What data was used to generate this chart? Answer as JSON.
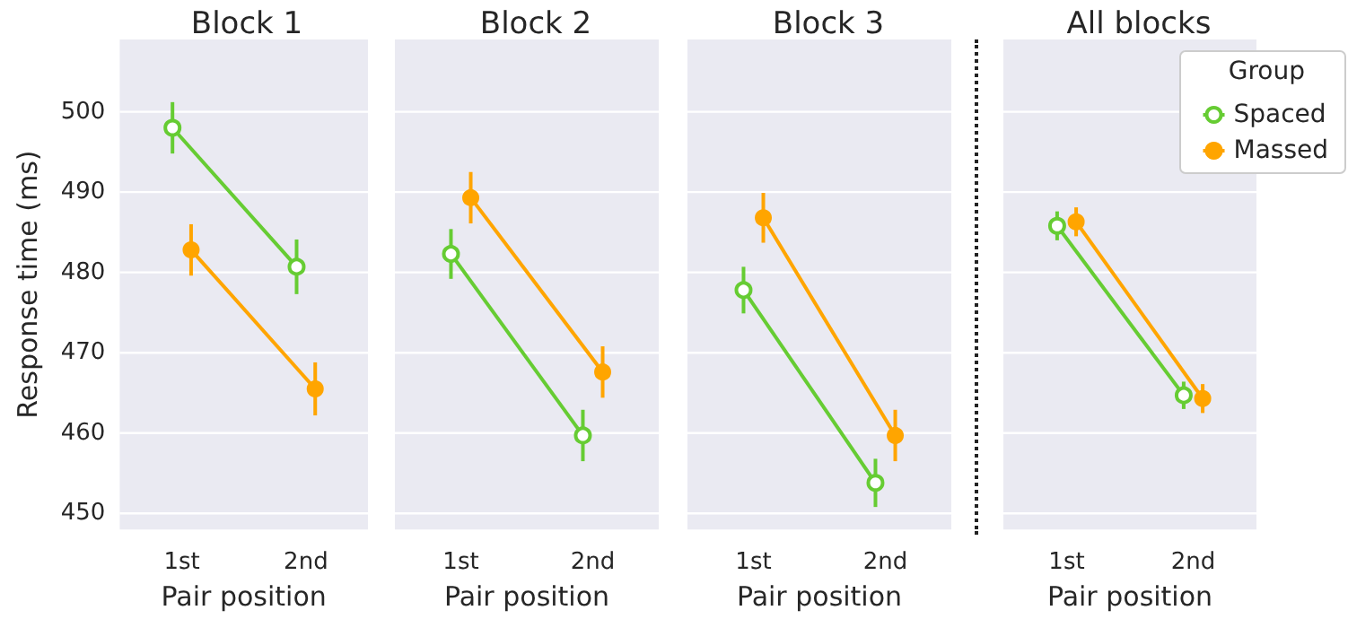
{
  "chart_data": [
    {
      "type": "line",
      "title": "Block 1",
      "xlabel": "Pair position",
      "ylabel": "Response time (ms)",
      "categories": [
        "1st",
        "2nd"
      ],
      "series": [
        {
          "color": "#66cc33",
          "values": [
            498,
            480.7
          ],
          "errors": [
            3.2,
            3.4
          ]
        },
        {
          "color": "#ffa500",
          "values": [
            482.8,
            465.5
          ],
          "errors": [
            3.2,
            3.3
          ]
        }
      ],
      "ylim": [
        448,
        509
      ],
      "yticks": [
        450,
        460,
        470,
        480,
        490,
        500
      ],
      "grid": "y",
      "marker": "circle",
      "legend": false
    },
    {
      "type": "line",
      "title": "Block 2",
      "xlabel": "Pair position",
      "categories": [
        "1st",
        "2nd"
      ],
      "series": [
        {
          "color": "#66cc33",
          "values": [
            482.3,
            459.7
          ],
          "errors": [
            3.1,
            3.2
          ]
        },
        {
          "color": "#ffa500",
          "values": [
            489.3,
            467.6
          ],
          "errors": [
            3.2,
            3.2
          ]
        }
      ],
      "ylim": [
        448,
        509
      ],
      "yticks": [
        450,
        460,
        470,
        480,
        490,
        500
      ],
      "grid": "y",
      "marker": "circle",
      "legend": false,
      "tick_labels": "x"
    },
    {
      "type": "line",
      "title": "Block 3",
      "xlabel": "Pair position",
      "categories": [
        "1st",
        "2nd"
      ],
      "series": [
        {
          "color": "#66cc33",
          "values": [
            477.8,
            453.8
          ],
          "errors": [
            2.9,
            3.0
          ]
        },
        {
          "color": "#ffa500",
          "values": [
            486.8,
            459.7
          ],
          "errors": [
            3.1,
            3.2
          ]
        }
      ],
      "ylim": [
        448,
        509
      ],
      "yticks": [
        450,
        460,
        470,
        480,
        490,
        500
      ],
      "grid": "y",
      "marker": "circle",
      "legend": false,
      "tick_labels": "x"
    },
    {
      "type": "line",
      "title": "All blocks",
      "xlabel": "Pair position",
      "categories": [
        "1st",
        "2nd"
      ],
      "legend_title": "Group",
      "series": [
        {
          "name": "Spaced",
          "color": "#66cc33",
          "values": [
            485.8,
            464.7
          ],
          "errors": [
            1.8,
            1.7
          ]
        },
        {
          "name": "Massed",
          "color": "#ffa500",
          "values": [
            486.3,
            464.3
          ],
          "errors": [
            1.8,
            1.8
          ]
        }
      ],
      "ylim": [
        448,
        509
      ],
      "yticks": [
        450,
        460,
        470,
        480,
        490,
        500
      ],
      "grid": "y",
      "marker": "circle",
      "legend": "top right",
      "tick_labels": "x"
    }
  ]
}
